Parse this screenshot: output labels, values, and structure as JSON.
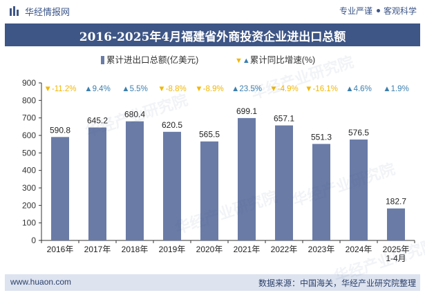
{
  "header": {
    "brand": "华经情报网",
    "tagline_left": "专业严谨",
    "tagline_right": "客观科学"
  },
  "title": "2016-2025年4月福建省外商投资企业进出口总额",
  "legend": {
    "bar_label": "累计进出口总额(亿美元)",
    "growth_label": "累计同比增速(%)"
  },
  "footer": {
    "site": "www.huaon.com",
    "source": "数据来源：中国海关，华经产业研究院整理"
  },
  "watermark": "华经产业研究院",
  "colors": {
    "bar": "#6a7ba6",
    "title_bg": "#3e5686",
    "down": "#f2b705",
    "up": "#3b7fae"
  },
  "chart_data": {
    "type": "bar",
    "categories": [
      "2016年",
      "2017年",
      "2018年",
      "2019年",
      "2020年",
      "2021年",
      "2022年",
      "2023年",
      "2024年",
      "2025年\n1-4月"
    ],
    "series": [
      {
        "name": "累计进出口总额(亿美元)",
        "values": [
          590.8,
          645.2,
          680.4,
          620.5,
          565.5,
          699.1,
          657.1,
          551.3,
          576.5,
          182.7
        ]
      },
      {
        "name": "累计同比增速(%)",
        "values": [
          -11.2,
          9.4,
          5.5,
          -8.8,
          -8.9,
          23.5,
          -4.9,
          -16.1,
          4.6,
          1.9
        ],
        "display": [
          "-11.2%",
          "9.4%",
          "5.5%",
          "-8.8%",
          "-8.9%",
          "23.5%",
          "-4.9%",
          "-16.1%",
          "4.6%",
          "1.9%"
        ]
      }
    ],
    "ylim": [
      0,
      900
    ],
    "yticks": [
      0,
      100,
      200,
      300,
      400,
      500,
      600,
      700,
      800,
      900
    ],
    "grid": false,
    "legend_position": "top-center"
  }
}
